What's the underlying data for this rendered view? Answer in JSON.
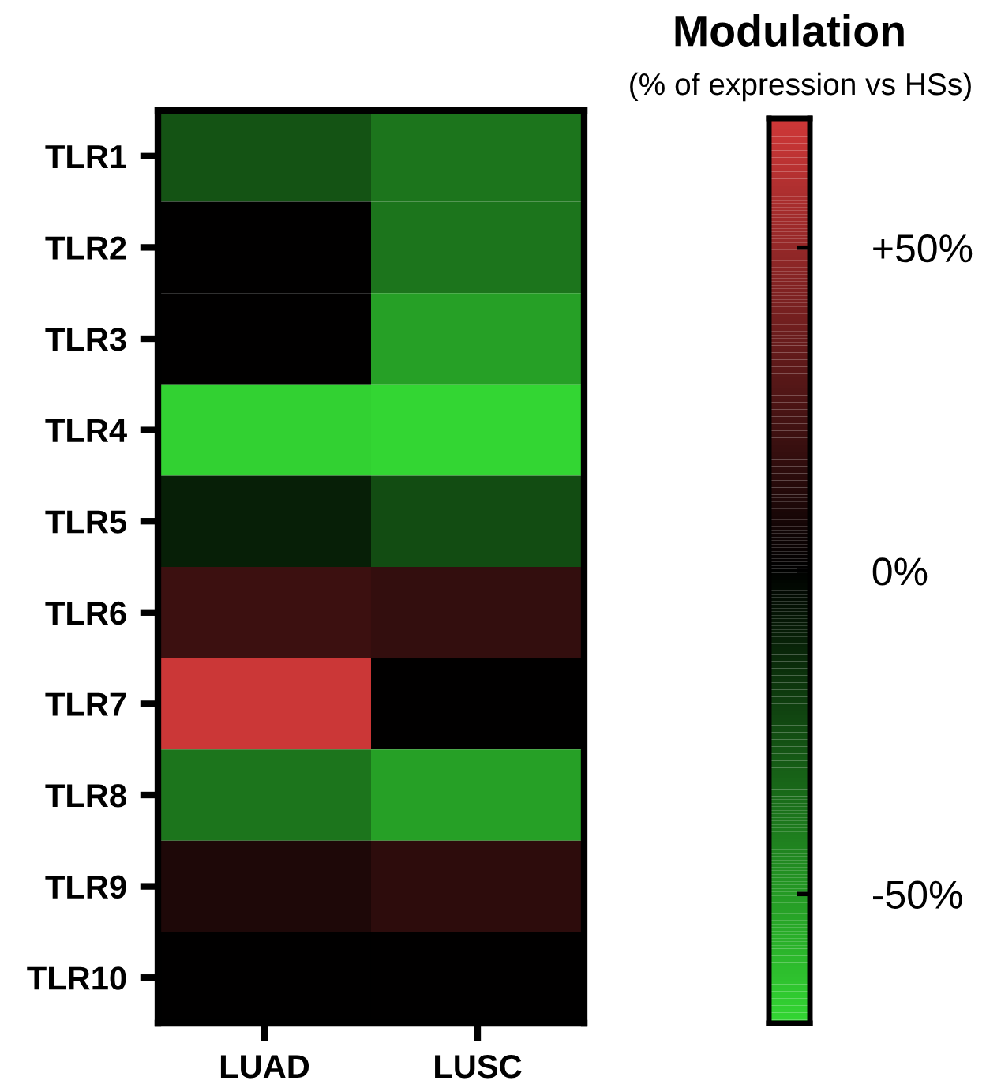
{
  "chart_data": {
    "type": "heatmap",
    "title": "Modulation",
    "subtitle": "(% of expression vs HSs)",
    "categories": [
      "LUAD",
      "LUSC"
    ],
    "y_categories": [
      "TLR1",
      "TLR2",
      "TLR3",
      "TLR4",
      "TLR5",
      "TLR6",
      "TLR7",
      "TLR8",
      "TLR9",
      "TLR10"
    ],
    "cells": [
      [
        -27,
        -38
      ],
      [
        0,
        -38
      ],
      [
        0,
        -52
      ],
      [
        -68,
        -70
      ],
      [
        -10,
        -25
      ],
      [
        20,
        17
      ],
      [
        68,
        0
      ],
      [
        -38,
        -52
      ],
      [
        10,
        15
      ],
      [
        0,
        0
      ]
    ],
    "clim": [
      -70,
      70
    ],
    "cticks": [
      {
        "value": 50,
        "label": "+50%"
      },
      {
        "value": 0,
        "label": "0%"
      },
      {
        "value": -50,
        "label": "-50%"
      }
    ]
  }
}
